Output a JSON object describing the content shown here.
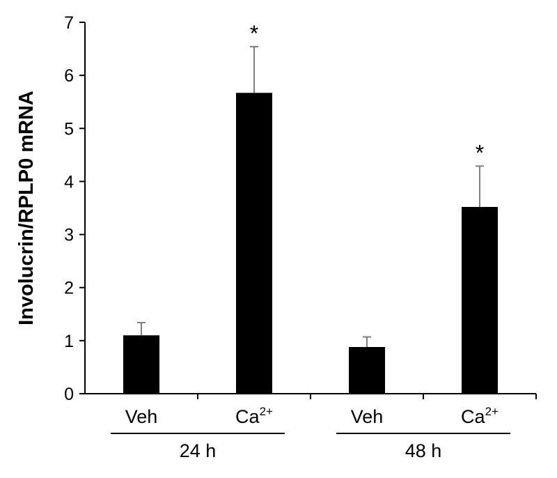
{
  "chart_data": {
    "type": "bar",
    "ylabel": "Involucrin/RPLP0 mRNA",
    "ylim": [
      0,
      7
    ],
    "yticks": [
      "0",
      "1",
      "2",
      "3",
      "4",
      "5",
      "6",
      "7"
    ],
    "grid": false,
    "bar_color": "#000000",
    "categories": [
      {
        "base": "Veh",
        "sup": "",
        "value": 1.1,
        "error": 0.24,
        "significance": ""
      },
      {
        "base": "Ca",
        "sup": "2+",
        "value": 5.67,
        "error": 0.87,
        "significance": "*"
      },
      {
        "base": "Veh",
        "sup": "",
        "value": 0.88,
        "error": 0.19,
        "significance": ""
      },
      {
        "base": "Ca",
        "sup": "2+",
        "value": 3.52,
        "error": 0.77,
        "significance": "*"
      }
    ],
    "groups": [
      {
        "label": "24 h",
        "members": [
          0,
          1
        ]
      },
      {
        "label": "48 h",
        "members": [
          2,
          3
        ]
      }
    ]
  }
}
